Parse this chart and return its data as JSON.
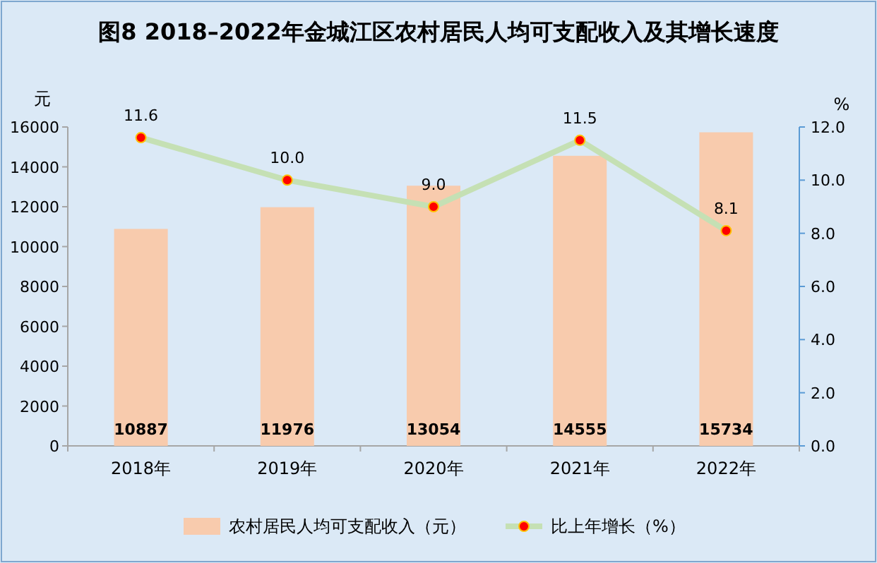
{
  "chart_data": {
    "type": "bar",
    "title": "图8   2018–2022年金城江区农村居民人均可支配收入及其增长速度",
    "ylabel": "元",
    "y2label": "%",
    "categories": [
      "2018年",
      "2019年",
      "2020年",
      "2021年",
      "2022年"
    ],
    "series": [
      {
        "name": "农村居民人均可支配收入（元）",
        "color": "#f8cbad",
        "values": [
          10887,
          11976,
          13054,
          14555,
          15734
        ],
        "value_labels": [
          "10887",
          "11976",
          "13054",
          "14555",
          "15734"
        ]
      },
      {
        "name": "比上年增长（%）",
        "type": "line",
        "axis": "y2",
        "color": "#c5e0b4",
        "marker": "circle",
        "values": [
          11.6,
          10.0,
          9.0,
          11.5,
          8.1
        ],
        "value_labels": [
          "11.6",
          "10.0",
          "9.0",
          "11.5",
          "8.1"
        ]
      }
    ],
    "ylim": [
      0,
      16000
    ],
    "yticks": [
      0,
      2000,
      4000,
      6000,
      8000,
      10000,
      12000,
      14000,
      16000
    ],
    "y2lim": [
      0,
      12
    ],
    "y2ticks": [
      {
        "value": 0,
        "label": "0.0"
      },
      {
        "value": 2,
        "label": "2.0"
      },
      {
        "value": 4,
        "label": "4.0"
      },
      {
        "value": 6,
        "label": "6.0"
      },
      {
        "value": 8,
        "label": "8.0"
      },
      {
        "value": 10,
        "label": "10.0"
      },
      {
        "value": 12,
        "label": "12.0"
      }
    ],
    "grid": false,
    "legend": "bottom"
  }
}
